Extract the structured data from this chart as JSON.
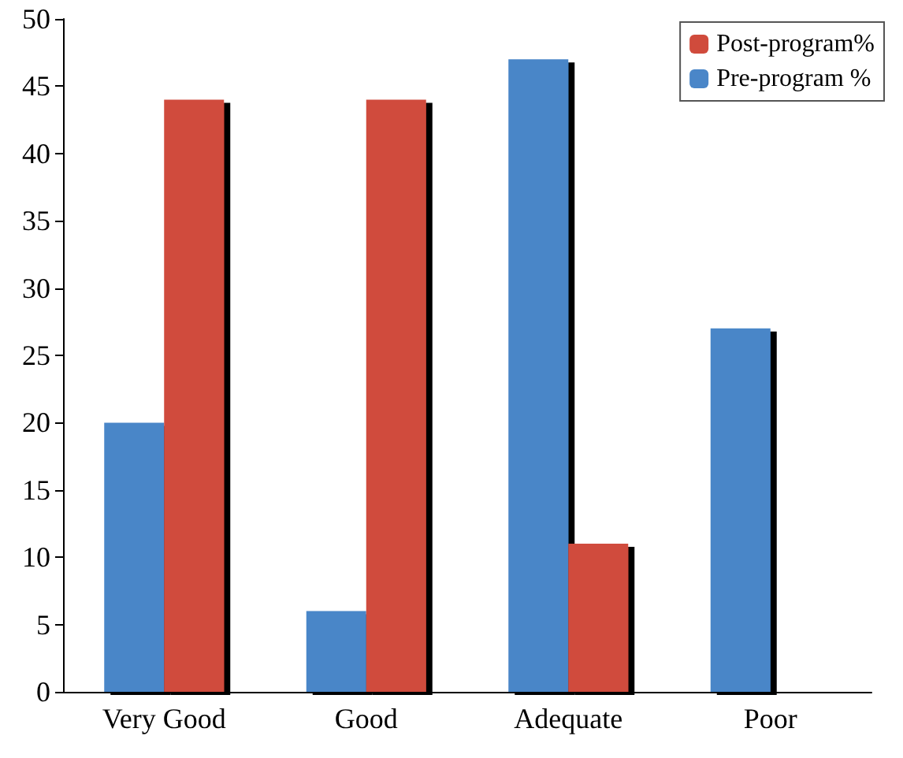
{
  "chart_data": {
    "type": "bar",
    "categories": [
      "Very Good",
      "Good",
      "Adequate",
      "Poor"
    ],
    "series": [
      {
        "name": "Pre-program %",
        "color": "#4a86c8",
        "values": [
          20,
          6,
          47,
          27
        ]
      },
      {
        "name": "Post-program%",
        "color": "#d04b3c",
        "values": [
          44,
          44,
          11,
          null
        ]
      }
    ],
    "ylim": [
      0,
      50
    ],
    "yticks": [
      0,
      5,
      10,
      15,
      20,
      25,
      30,
      35,
      40,
      45,
      50
    ],
    "grid": false,
    "legend": "top right"
  }
}
